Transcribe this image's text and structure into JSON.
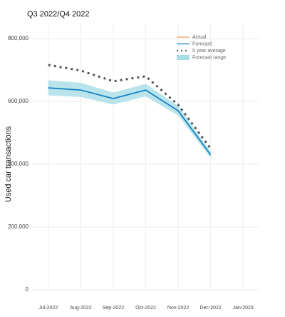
{
  "chart_data": {
    "type": "line",
    "title": "Q3 2022/Q4 2022",
    "y_label": "Used car transactions",
    "categories": [
      "Jul-2022",
      "Aug-2022",
      "Sep-2022",
      "Oct-2022",
      "Nov-2022",
      "Dec-2022",
      "Jan-2023"
    ],
    "series": [
      {
        "name": "Actual",
        "color": "#f4a261",
        "values": [
          null,
          null,
          null,
          null,
          null,
          null,
          null
        ]
      },
      {
        "name": "Forecast",
        "color": "#0a78c2",
        "values": [
          643000,
          636000,
          609000,
          636000,
          570000,
          430000,
          null
        ]
      },
      {
        "name": "5 year average",
        "color": "#555555",
        "values": [
          716000,
          698000,
          664000,
          680000,
          589000,
          450000,
          null
        ]
      },
      {
        "name": "Forecast range",
        "color": "#a8dde6",
        "low": [
          619000,
          614000,
          590000,
          616000,
          555000,
          420000,
          null
        ],
        "high": [
          667000,
          659000,
          628000,
          656000,
          585000,
          440000,
          null
        ]
      }
    ],
    "ylim": [
      0,
      850000
    ],
    "yticks": [
      0,
      {
        "value": 200000,
        "label": "200,000"
      },
      {
        "value": 400000,
        "label": "400,000"
      },
      {
        "value": 600000,
        "label": "600,000"
      },
      {
        "value": 800000,
        "label": "800,000"
      }
    ],
    "grid": true,
    "legend": "top-right"
  }
}
